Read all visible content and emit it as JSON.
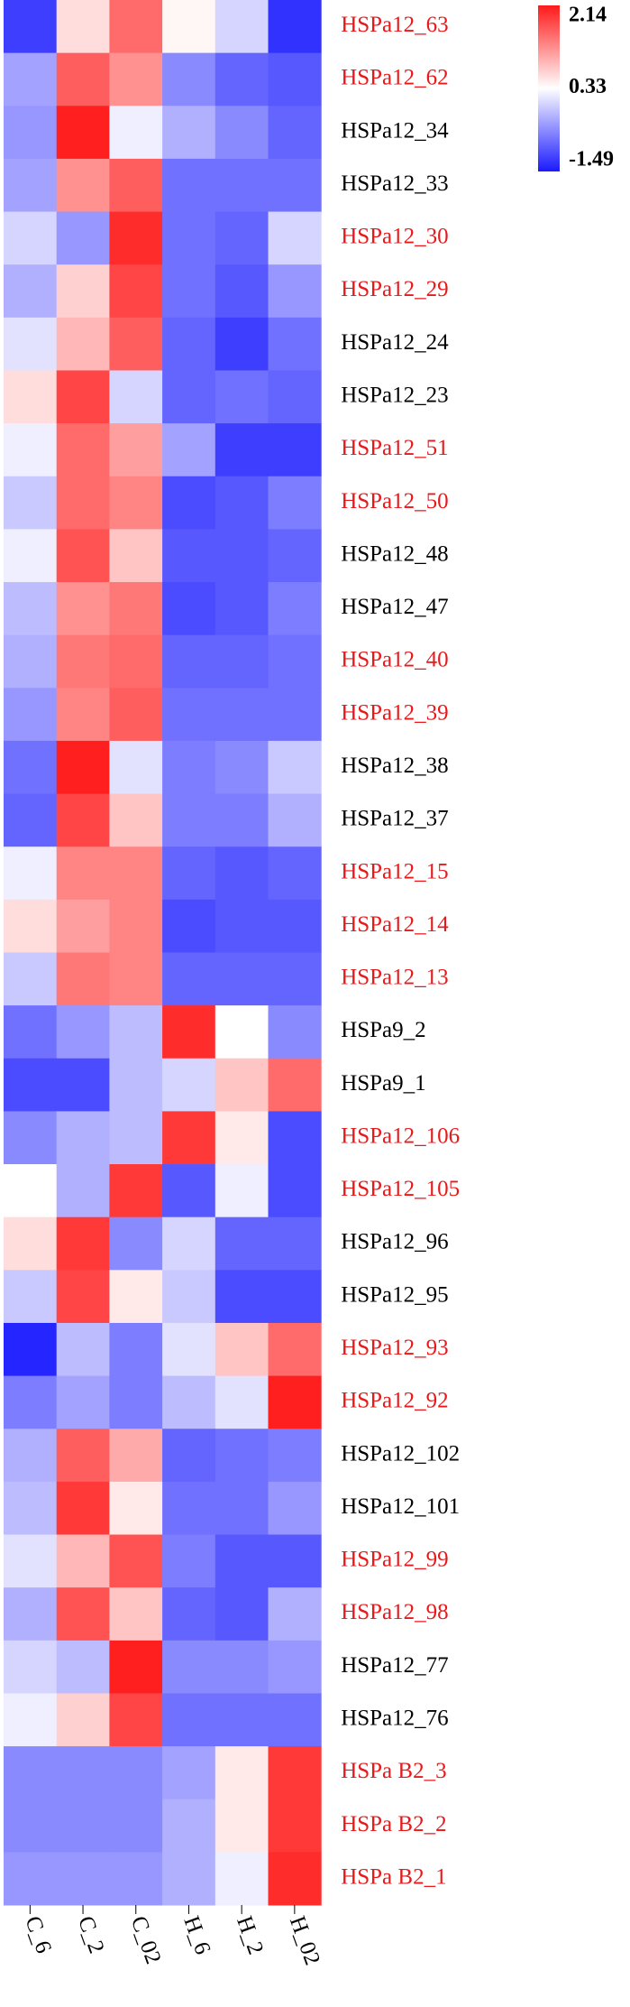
{
  "chart_data": {
    "type": "heatmap",
    "x": [
      "C_6",
      "C_2",
      "C_02",
      "H_6",
      "H_2",
      "H_02"
    ],
    "y": [
      "HSPa12_63",
      "HSPa12_62",
      "HSPa12_34",
      "HSPa12_33",
      "HSPa12_30",
      "HSPa12_29",
      "HSPa12_24",
      "HSPa12_23",
      "HSPa12_51",
      "HSPa12_50",
      "HSPa12_48",
      "HSPa12_47",
      "HSPa12_40",
      "HSPa12_39",
      "HSPa12_38",
      "HSPa12_37",
      "HSPa12_15",
      "HSPa12_14",
      "HSPa12_13",
      "HSPa9_2",
      "HSPa9_1",
      "HSPa12_106",
      "HSPa12_105",
      "HSPa12_96",
      "HSPa12_95",
      "HSPa12_93",
      "HSPa12_92",
      "HSPa12_102",
      "HSPa12_101",
      "HSPa12_99",
      "HSPa12_98",
      "HSPa12_77",
      "HSPa12_76",
      "HSPa B2_3",
      "HSPa B2_2",
      "HSPa B2_1"
    ],
    "row_label_colors": [
      "#e8191b",
      "#e8191b",
      "#000000",
      "#000000",
      "#e8191b",
      "#e8191b",
      "#000000",
      "#000000",
      "#e8191b",
      "#e8191b",
      "#000000",
      "#000000",
      "#e8191b",
      "#e8191b",
      "#000000",
      "#000000",
      "#e8191b",
      "#e8191b",
      "#e8191b",
      "#000000",
      "#000000",
      "#e8191b",
      "#e8191b",
      "#000000",
      "#000000",
      "#e8191b",
      "#e8191b",
      "#000000",
      "#000000",
      "#e8191b",
      "#e8191b",
      "#000000",
      "#000000",
      "#e8191b",
      "#e8191b",
      "#e8191b"
    ],
    "values": [
      [
        -1.2,
        0.6,
        1.5,
        0.4,
        0.0,
        -1.3
      ],
      [
        -0.4,
        1.6,
        1.2,
        -0.6,
        -0.9,
        -1.0
      ],
      [
        -0.5,
        2.1,
        0.2,
        -0.3,
        -0.6,
        -0.9
      ],
      [
        -0.4,
        1.2,
        1.6,
        -0.8,
        -0.8,
        -0.8
      ],
      [
        0.0,
        -0.5,
        2.0,
        -0.8,
        -0.9,
        0.0
      ],
      [
        -0.3,
        0.7,
        1.8,
        -0.8,
        -1.0,
        -0.5
      ],
      [
        0.1,
        0.9,
        1.6,
        -0.9,
        -1.2,
        -0.8
      ],
      [
        0.6,
        1.8,
        0.0,
        -0.9,
        -0.8,
        -0.9
      ],
      [
        0.2,
        1.5,
        1.1,
        -0.4,
        -1.2,
        -1.2
      ],
      [
        -0.1,
        1.5,
        1.3,
        -1.1,
        -1.0,
        -0.7
      ],
      [
        0.2,
        1.7,
        0.8,
        -1.0,
        -1.0,
        -0.9
      ],
      [
        -0.2,
        1.2,
        1.4,
        -1.1,
        -1.0,
        -0.7
      ],
      [
        -0.3,
        1.4,
        1.5,
        -0.9,
        -0.9,
        -0.8
      ],
      [
        -0.5,
        1.3,
        1.6,
        -0.8,
        -0.8,
        -0.8
      ],
      [
        -0.8,
        2.1,
        0.1,
        -0.7,
        -0.6,
        -0.1
      ],
      [
        -0.9,
        1.8,
        0.8,
        -0.7,
        -0.7,
        -0.3
      ],
      [
        0.2,
        1.3,
        1.3,
        -0.9,
        -1.0,
        -0.9
      ],
      [
        0.6,
        1.1,
        1.3,
        -1.1,
        -1.0,
        -1.0
      ],
      [
        -0.1,
        1.4,
        1.3,
        -0.9,
        -0.9,
        -0.9
      ],
      [
        -0.8,
        -0.5,
        -0.2,
        2.0,
        0.33,
        -0.6
      ],
      [
        -1.1,
        -1.1,
        -0.2,
        0.0,
        0.8,
        1.5
      ],
      [
        -0.6,
        -0.3,
        -0.2,
        1.9,
        0.5,
        -1.1
      ],
      [
        0.33,
        -0.3,
        1.9,
        -1.0,
        0.2,
        -1.1
      ],
      [
        0.6,
        1.9,
        -0.6,
        0.0,
        -0.9,
        -0.9
      ],
      [
        -0.1,
        1.8,
        0.5,
        -0.1,
        -1.1,
        -1.1
      ],
      [
        -1.4,
        -0.2,
        -0.7,
        0.1,
        0.8,
        1.5
      ],
      [
        -0.7,
        -0.4,
        -0.7,
        -0.2,
        0.1,
        2.1
      ],
      [
        -0.3,
        1.6,
        1.0,
        -0.9,
        -0.8,
        -0.7
      ],
      [
        -0.2,
        1.9,
        0.5,
        -0.8,
        -0.8,
        -0.5
      ],
      [
        0.1,
        0.9,
        1.7,
        -0.7,
        -1.0,
        -1.0
      ],
      [
        -0.3,
        1.7,
        0.8,
        -0.9,
        -1.0,
        -0.3
      ],
      [
        0.0,
        -0.2,
        2.1,
        -0.6,
        -0.6,
        -0.5
      ],
      [
        0.2,
        0.7,
        1.8,
        -0.8,
        -0.8,
        -0.8
      ],
      [
        -0.6,
        -0.6,
        -0.6,
        -0.4,
        0.5,
        1.9
      ],
      [
        -0.6,
        -0.6,
        -0.6,
        -0.3,
        0.5,
        1.9
      ],
      [
        -0.5,
        -0.5,
        -0.5,
        -0.3,
        0.2,
        2.0
      ]
    ],
    "zlim": [
      -1.49,
      2.14
    ],
    "zticks": [
      2.14,
      0.33,
      -1.49
    ],
    "colors": [
      "#1a1aff",
      "#ffffff",
      "#ff1a1a"
    ]
  }
}
